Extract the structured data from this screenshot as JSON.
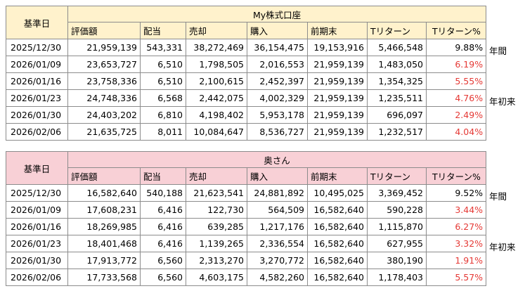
{
  "tables": [
    {
      "id": "my",
      "corner": "基準日",
      "title": "My株式口座",
      "columns": [
        "評価額",
        "配当",
        "売却",
        "購入",
        "前期末",
        "Tリターン",
        "Tリターン%"
      ],
      "rows": [
        {
          "date": "2025/12/30",
          "values": [
            "21,959,139",
            "543,331",
            "38,272,469",
            "36,154,475",
            "19,153,916",
            "5,466,548",
            "9.88%"
          ],
          "pct_red": false,
          "side": "年間"
        },
        {
          "date": "2026/01/09",
          "values": [
            "23,653,727",
            "6,510",
            "1,798,505",
            "2,016,553",
            "21,959,139",
            "1,483,050",
            "6.19%"
          ],
          "pct_red": true,
          "side": ""
        },
        {
          "date": "2026/01/16",
          "values": [
            "23,758,336",
            "6,510",
            "2,100,615",
            "2,452,397",
            "21,959,139",
            "1,354,325",
            "5.55%"
          ],
          "pct_red": true,
          "side": ""
        },
        {
          "date": "2026/01/23",
          "values": [
            "24,748,336",
            "6,568",
            "2,442,075",
            "4,002,329",
            "21,959,139",
            "1,235,511",
            "4.76%"
          ],
          "pct_red": true,
          "side": "年初来"
        },
        {
          "date": "2026/01/30",
          "values": [
            "24,403,202",
            "6,810",
            "4,198,402",
            "5,953,178",
            "21,959,139",
            "696,097",
            "2.49%"
          ],
          "pct_red": true,
          "side": ""
        },
        {
          "date": "2026/02/06",
          "values": [
            "21,635,725",
            "8,011",
            "10,084,647",
            "8,536,727",
            "21,959,139",
            "1,232,517",
            "4.04%"
          ],
          "pct_red": true,
          "side": ""
        }
      ]
    },
    {
      "id": "wife",
      "corner": "基準日",
      "title": "奥さん",
      "columns": [
        "評価額",
        "配当",
        "売却",
        "購入",
        "前期末",
        "Tリターン",
        "Tリターン%"
      ],
      "rows": [
        {
          "date": "2025/12/30",
          "values": [
            "16,582,640",
            "540,188",
            "21,623,541",
            "24,881,892",
            "10,495,025",
            "3,369,452",
            "9.52%"
          ],
          "pct_red": false,
          "side": "年間"
        },
        {
          "date": "2026/01/09",
          "values": [
            "17,608,231",
            "6,416",
            "122,730",
            "564,509",
            "16,582,640",
            "590,228",
            "3.44%"
          ],
          "pct_red": true,
          "side": ""
        },
        {
          "date": "2026/01/16",
          "values": [
            "18,269,985",
            "6,416",
            "639,285",
            "1,217,176",
            "16,582,640",
            "1,115,870",
            "6.27%"
          ],
          "pct_red": true,
          "side": ""
        },
        {
          "date": "2026/01/23",
          "values": [
            "18,401,468",
            "6,416",
            "1,139,265",
            "2,336,554",
            "16,582,640",
            "627,955",
            "3.32%"
          ],
          "pct_red": true,
          "side": "年初来"
        },
        {
          "date": "2026/01/30",
          "values": [
            "17,913,772",
            "6,560",
            "2,313,270",
            "3,270,772",
            "16,582,640",
            "380,190",
            "1.91%"
          ],
          "pct_red": true,
          "side": ""
        },
        {
          "date": "2026/02/06",
          "values": [
            "17,733,568",
            "6,560",
            "4,603,175",
            "4,582,260",
            "16,582,640",
            "1,178,403",
            "5.57%"
          ],
          "pct_red": true,
          "side": ""
        }
      ]
    }
  ]
}
